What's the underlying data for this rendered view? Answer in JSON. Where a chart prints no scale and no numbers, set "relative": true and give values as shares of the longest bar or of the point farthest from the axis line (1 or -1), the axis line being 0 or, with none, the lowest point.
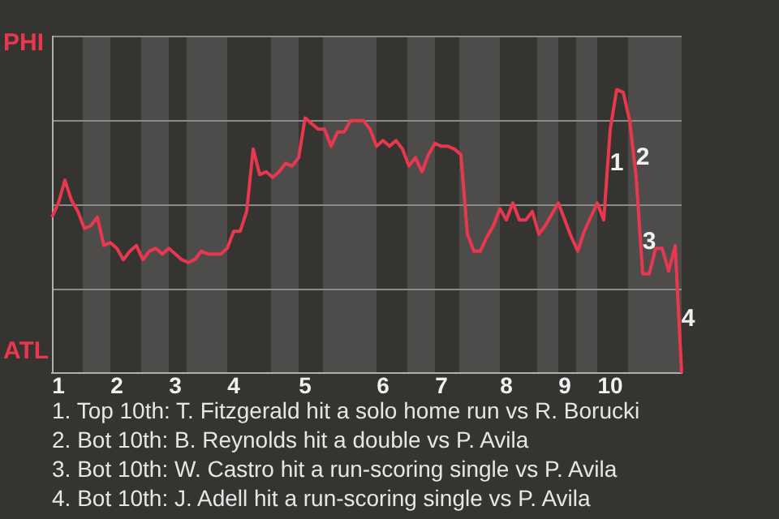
{
  "chart_data": {
    "type": "line",
    "relative": true,
    "categories": [
      null,
      "1",
      null,
      null,
      null,
      null,
      null,
      null,
      null,
      null,
      "2",
      null,
      null,
      null,
      null,
      null,
      null,
      null,
      null,
      "3",
      null,
      null,
      null,
      null,
      null,
      null,
      null,
      null,
      "4",
      null,
      null,
      null,
      null,
      null,
      null,
      null,
      null,
      null,
      null,
      "5",
      null,
      null,
      null,
      null,
      null,
      null,
      null,
      null,
      null,
      null,
      null,
      "6",
      null,
      null,
      null,
      null,
      null,
      null,
      null,
      null,
      "7",
      null,
      null,
      null,
      null,
      null,
      null,
      null,
      null,
      null,
      "8",
      null,
      null,
      null,
      null,
      null,
      null,
      null,
      null,
      "9",
      null,
      null,
      null,
      null,
      null,
      null,
      "10",
      null,
      null,
      null,
      null,
      null,
      null,
      null,
      null,
      null,
      null,
      null
    ],
    "series": [
      {
        "color": "#e8384f",
        "values": [
          0.55,
          0.6,
          0.68,
          0.61,
          0.57,
          0.51,
          0.52,
          0.55,
          0.45,
          0.46,
          0.44,
          0.4,
          0.43,
          0.45,
          0.4,
          0.43,
          0.44,
          0.42,
          0.44,
          0.42,
          0.4,
          0.39,
          0.4,
          0.43,
          0.42,
          0.42,
          0.42,
          0.44,
          0.5,
          0.5,
          0.57,
          0.79,
          0.7,
          0.71,
          0.69,
          0.71,
          0.74,
          0.73,
          0.76,
          0.9,
          0.88,
          0.86,
          0.86,
          0.8,
          0.85,
          0.85,
          0.89,
          0.89,
          0.89,
          0.86,
          0.8,
          0.82,
          0.8,
          0.82,
          0.79,
          0.73,
          0.76,
          0.71,
          0.77,
          0.81,
          0.8,
          0.8,
          0.79,
          0.77,
          0.49,
          0.43,
          0.43,
          0.48,
          0.52,
          0.58,
          0.54,
          0.6,
          0.54,
          0.54,
          0.57,
          0.49,
          0.52,
          0.56,
          0.6,
          0.54,
          0.48,
          0.43,
          0.5,
          0.55,
          0.6,
          0.54,
          0.86,
          1,
          0.99,
          0.89,
          0.69,
          0.35,
          0.35,
          0.44,
          0.44,
          0.36,
          0.45,
          0
        ]
      }
    ],
    "legend": false,
    "marker": "none",
    "line_style": "solid",
    "annotations": [
      "PHI",
      "ATL",
      {
        "text": "1",
        "y": 0.74
      },
      {
        "text": "2",
        "y": 0.76
      },
      {
        "text": "3",
        "y": 0.46
      },
      {
        "text": "4",
        "y": 0.19
      },
      "1. Top 10th: T. Fitzgerald hit a solo home run vs R. Borucki",
      "2. Bot 10th: B. Reynolds hit a double vs P. Avila",
      "3. Bot 10th: W. Castro hit a run-scoring single vs P. Avila",
      "4. Bot 10th: J. Adell hit a run-scoring single vs P. Avila"
    ]
  }
}
